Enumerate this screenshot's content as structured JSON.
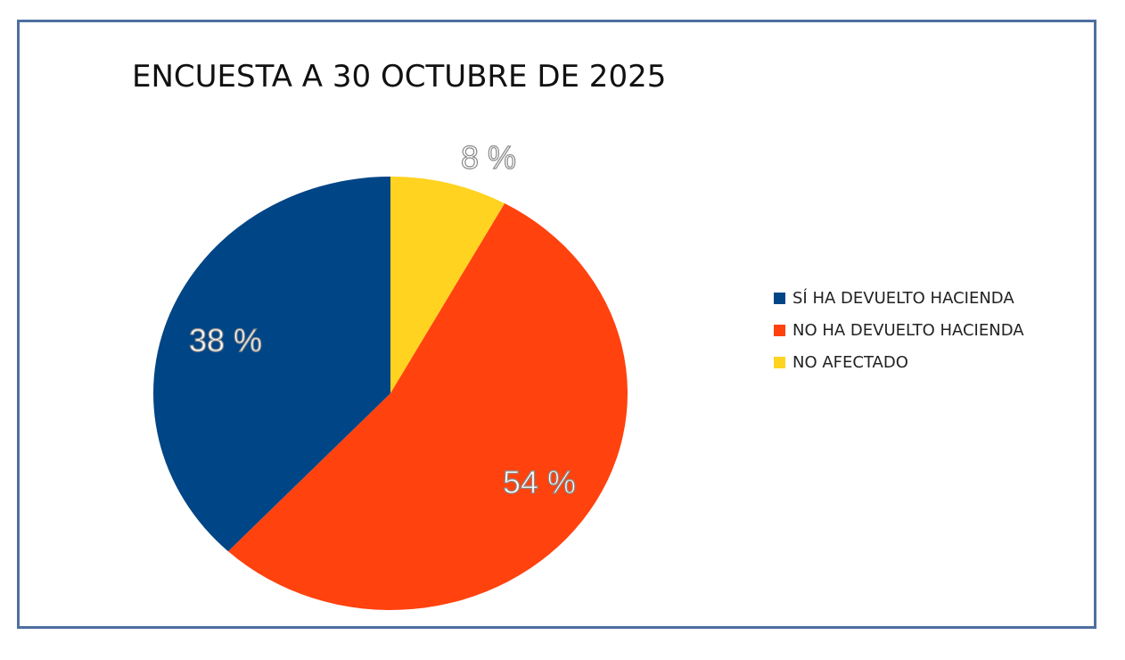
{
  "chart_data": {
    "type": "pie",
    "title": "ENCUESTA A 30 OCTUBRE DE 2025",
    "slices": [
      {
        "label": "NO AFECTADO",
        "value": 8,
        "data_label": "8 %",
        "color": "#ffd320"
      },
      {
        "label": "NO HA DEVUELTO HACIENDA",
        "value": 54,
        "data_label": "54 %",
        "color": "#ff420e"
      },
      {
        "label": "SÍ HA DEVUELTO HACIENDA",
        "value": 38,
        "data_label": "38 %",
        "color": "#004586"
      }
    ],
    "legend": [
      "SÍ HA DEVUELTO HACIENDA",
      "NO HA DEVUELTO HACIENDA",
      "NO AFECTADO"
    ],
    "legend_colors": [
      "#004586",
      "#ff420e",
      "#ffd320"
    ],
    "legend_placement": "right",
    "start_angle": "top, clockwise"
  }
}
